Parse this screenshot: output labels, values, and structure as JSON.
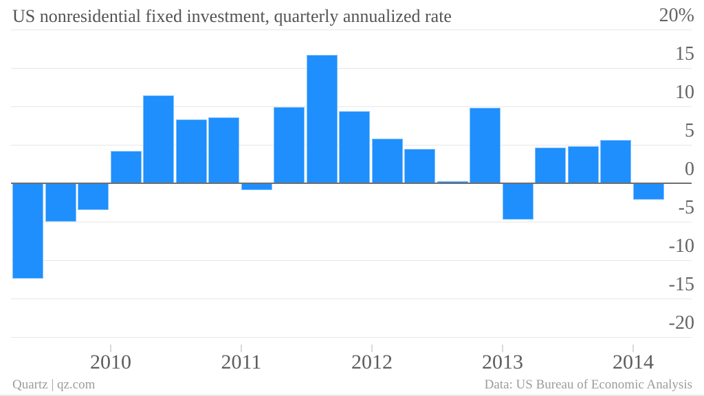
{
  "header": {
    "title": "US nonresidential fixed investment, quarterly annualized rate"
  },
  "footer": {
    "source_left": "Quartz | qz.com",
    "source_right": "Data: US Bureau of Economic Analysis"
  },
  "chart_data": {
    "type": "bar",
    "title": "US nonresidential fixed investment, quarterly annualized rate",
    "unit": "percent, quarterly annualized rate",
    "x": [
      "2009 Q2",
      "2009 Q3",
      "2009 Q4",
      "2010 Q1",
      "2010 Q2",
      "2010 Q3",
      "2010 Q4",
      "2011 Q1",
      "2011 Q2",
      "2011 Q3",
      "2011 Q4",
      "2012 Q1",
      "2012 Q2",
      "2012 Q3",
      "2012 Q4",
      "2013 Q1",
      "2013 Q2",
      "2013 Q3",
      "2013 Q4",
      "2014 Q1"
    ],
    "values": [
      -12.4,
      -5.0,
      -3.5,
      4.2,
      11.4,
      8.3,
      8.6,
      -0.9,
      9.9,
      16.7,
      9.4,
      5.8,
      4.5,
      0.3,
      9.8,
      -4.7,
      4.6,
      4.8,
      5.6,
      -2.1
    ],
    "x_axis": {
      "year_labels": [
        "2010",
        "2011",
        "2012",
        "2013",
        "2014"
      ]
    },
    "y_axis": {
      "tick_labels": [
        "20%",
        "15",
        "10",
        "5",
        "0",
        "-5",
        "-10",
        "-15",
        "-20"
      ],
      "tick_values": [
        20,
        15,
        10,
        5,
        0,
        -5,
        -10,
        -15,
        -20
      ],
      "ylim": [
        -20,
        20
      ]
    },
    "grid": true,
    "legend": "none",
    "colors": {
      "bar": "#1e8ffd",
      "gridline": "#e6e6e6",
      "zero_line": "#6e6e6e",
      "title_text": "#545454",
      "axis_text": "#636363",
      "year_text": "#5d5d5d",
      "footer_text": "#9c9c9c",
      "tick_mark": "#d9d9d9",
      "bottom_border": "#eaeaea"
    }
  }
}
